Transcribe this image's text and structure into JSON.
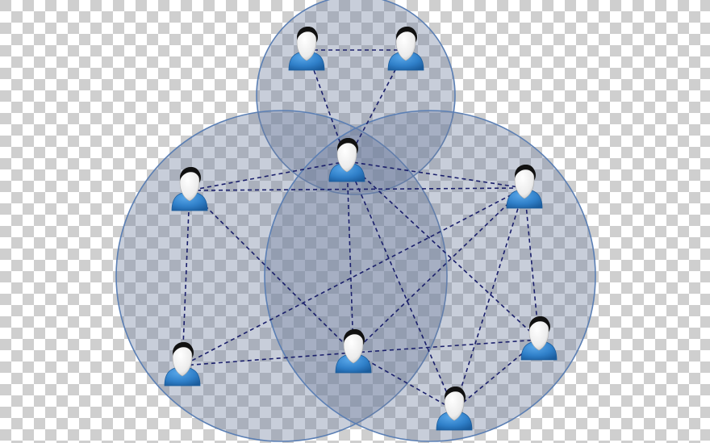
{
  "colors": {
    "checker_light": "#ffffff",
    "checker_dark": "#cfcfcf",
    "circle_fill": "#6e7f9e",
    "circle_stroke": "#5b7fb4",
    "edge": "#1a1f6b",
    "body_blue": "#2f7fc8",
    "body_dark": "#1b5c9c",
    "face": "#f4f4f4",
    "hair": "#111111"
  },
  "icons": {
    "person": "person-icon",
    "group": "group-circle"
  },
  "diagram": {
    "groups": [
      {
        "id": "top"
      },
      {
        "id": "left"
      },
      {
        "id": "right"
      }
    ],
    "people": [
      {
        "id": "p1"
      },
      {
        "id": "p2"
      },
      {
        "id": "p3"
      },
      {
        "id": "p4"
      },
      {
        "id": "p5"
      },
      {
        "id": "p6"
      },
      {
        "id": "p7"
      },
      {
        "id": "p8"
      },
      {
        "id": "p9"
      }
    ],
    "links": [
      [
        "p1",
        "p2"
      ],
      [
        "p1",
        "p3"
      ],
      [
        "p2",
        "p3"
      ],
      [
        "p3",
        "p4"
      ],
      [
        "p3",
        "p5"
      ],
      [
        "p3",
        "p7"
      ],
      [
        "p3",
        "p8"
      ],
      [
        "p3",
        "p9"
      ],
      [
        "p4",
        "p5"
      ],
      [
        "p4",
        "p6"
      ],
      [
        "p4",
        "p7"
      ],
      [
        "p5",
        "p6"
      ],
      [
        "p5",
        "p7"
      ],
      [
        "p5",
        "p8"
      ],
      [
        "p5",
        "p9"
      ],
      [
        "p6",
        "p7"
      ],
      [
        "p7",
        "p8"
      ],
      [
        "p7",
        "p9"
      ],
      [
        "p8",
        "p9"
      ]
    ]
  }
}
